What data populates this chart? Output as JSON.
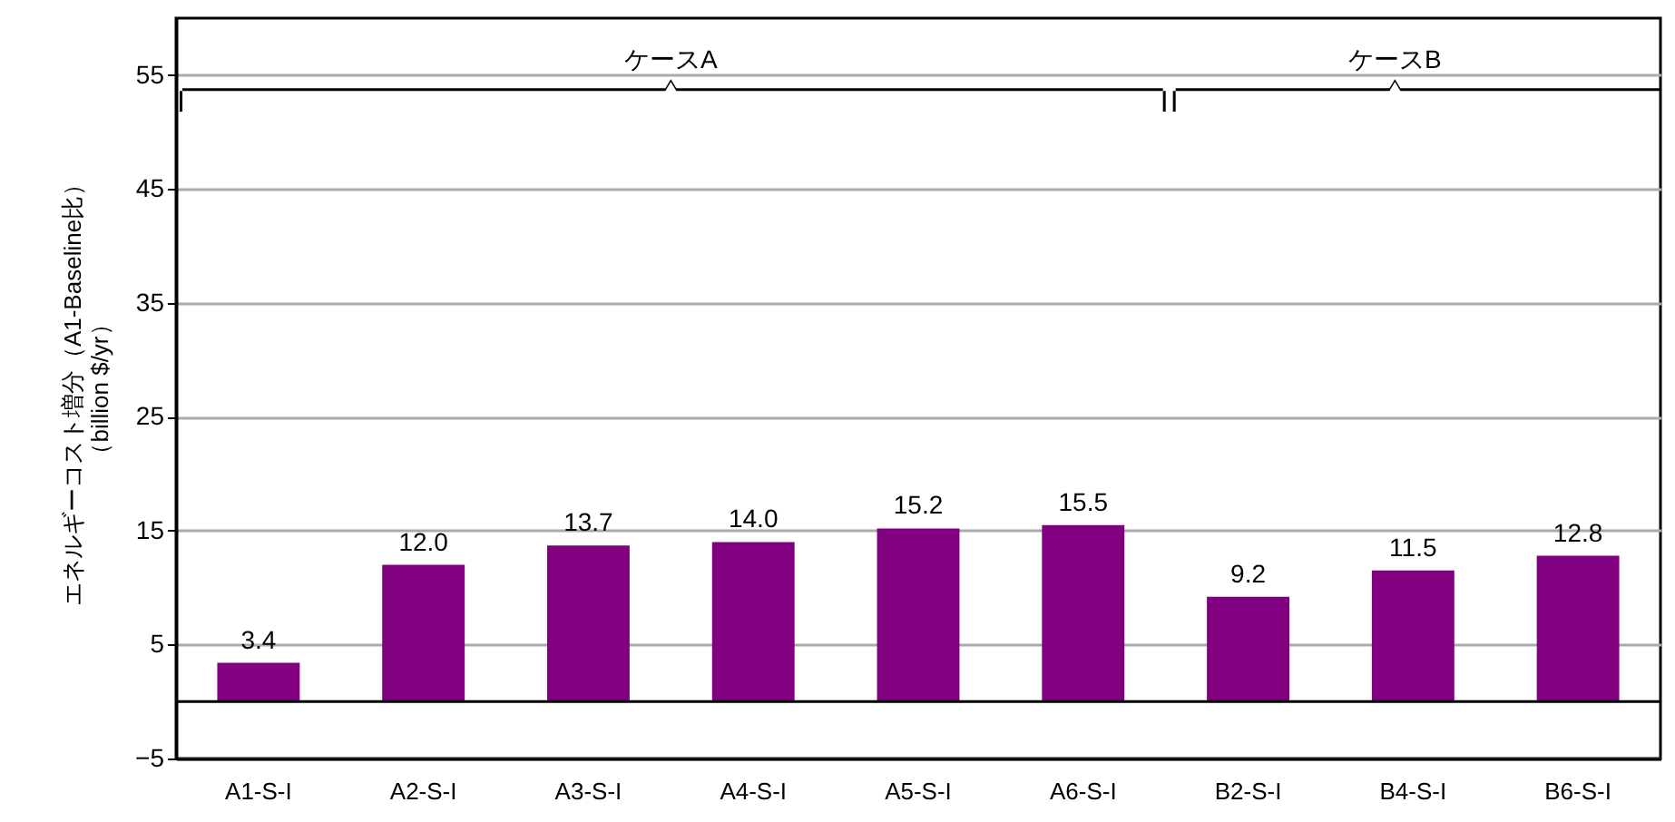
{
  "chart_data": {
    "type": "bar",
    "ylabel": "エネルギーコスト増分（A1-Baseline比）（billion $/yr）",
    "categories": [
      "A1-S-I",
      "A2-S-I",
      "A3-S-I",
      "A4-S-I",
      "A5-S-I",
      "A6-S-I",
      "B2-S-I",
      "B4-S-I",
      "B6-S-I"
    ],
    "values": [
      3.4,
      12.0,
      13.7,
      14.0,
      15.2,
      15.5,
      9.2,
      11.5,
      12.8
    ],
    "color": "#800080",
    "value_labels": [
      "3.4",
      "12.0",
      "13.7",
      "14.0",
      "15.2",
      "15.5",
      "9.2",
      "11.5",
      "12.8"
    ],
    "ylim": [
      -5,
      60
    ],
    "yticks": [
      -5,
      5,
      15,
      25,
      35,
      45,
      55
    ],
    "grid": "y",
    "ref_lines": [
      {
        "axis": "y",
        "value": 0,
        "color": "#000000"
      }
    ],
    "annotations": [
      "ケースA",
      "ケースB"
    ]
  }
}
